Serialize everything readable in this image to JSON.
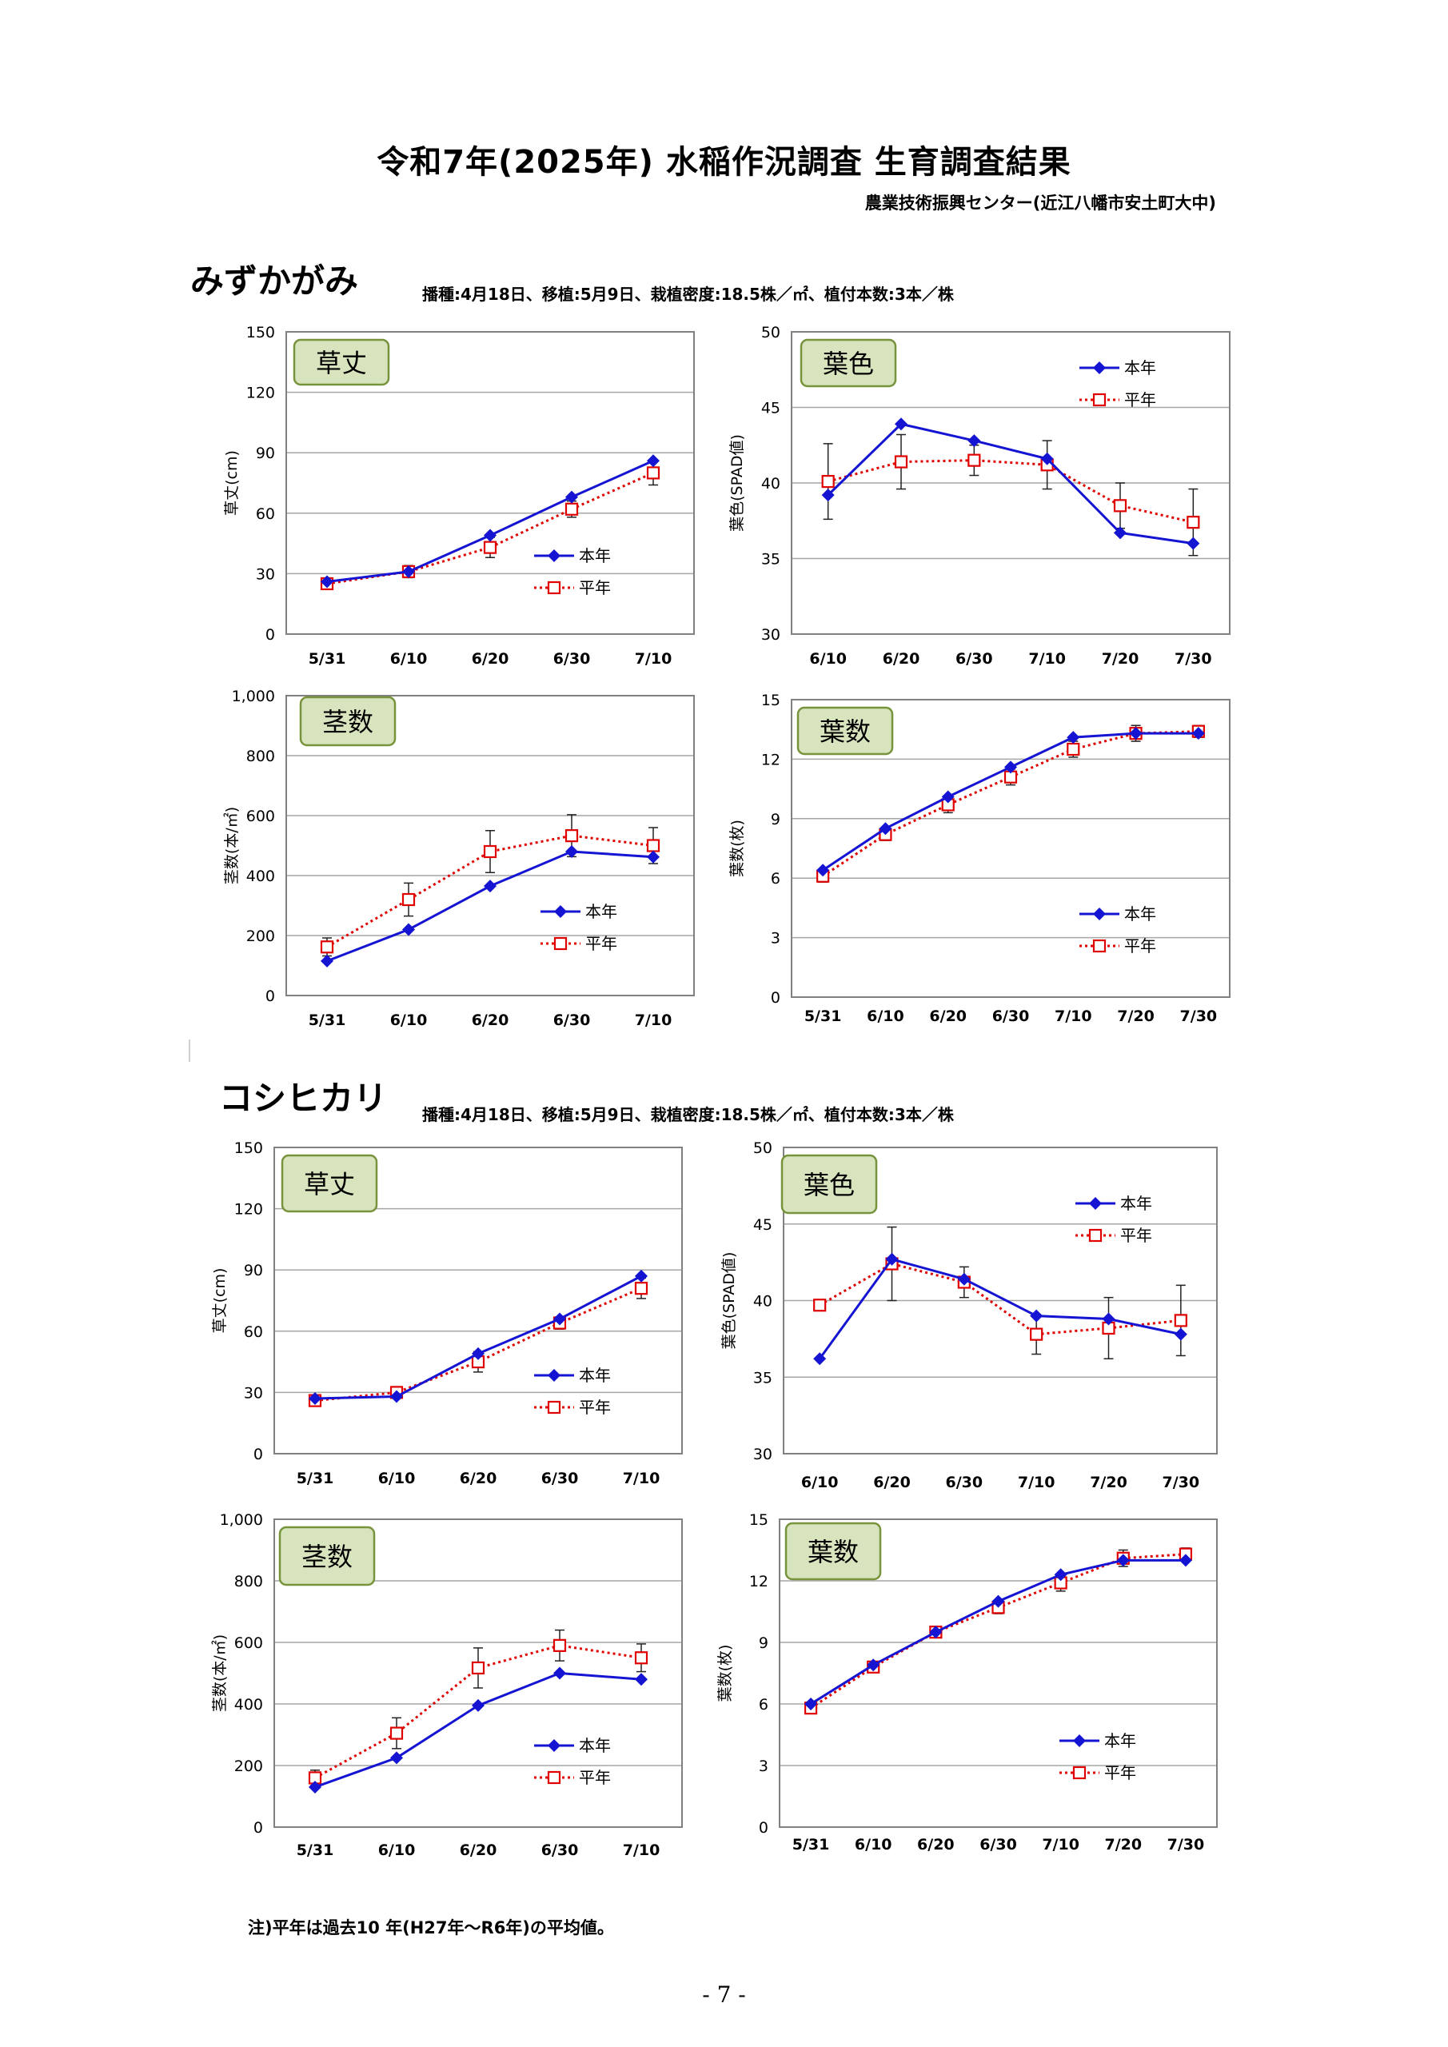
{
  "page": {
    "title": "令和7年(2025年) 水稲作況調査  生育調査結果",
    "subtitle": "農業技術振興センター(近江八幡市安土町大中)",
    "note": "注)平年は過去10 年(H27年～R6年)の平均値。",
    "page_number": "- 7 -"
  },
  "colors": {
    "current": "#1414d2",
    "average": "#e00000",
    "grid": "#a6a6a6",
    "badge_fill": "#d7e4bd",
    "badge_border": "#77933c"
  },
  "sections": [
    {
      "variety": "みずかがみ",
      "conditions": "播種:4月18日、移植:5月9日、栽植密度:18.5株／㎡、植付本数:3本／株"
    },
    {
      "variety": "コシヒカリ",
      "conditions": "播種:4月18日、移植:5月9日、栽植密度:18.5株／㎡、植付本数:3本／株"
    }
  ],
  "chart_data": [
    {
      "type": "line",
      "section": "みずかがみ",
      "title": "草丈",
      "ylabel": "草丈(cm)",
      "categories": [
        "5/31",
        "6/10",
        "6/20",
        "6/30",
        "7/10"
      ],
      "yticks": [
        "0",
        "30",
        "60",
        "90",
        "120",
        "150"
      ],
      "ylim": [
        0,
        150
      ],
      "grid": true,
      "legend": "lower-right",
      "series": [
        {
          "name": "本年",
          "values": [
            26,
            31,
            49,
            68,
            86
          ]
        },
        {
          "name": "平年",
          "values": [
            25,
            31,
            43,
            62,
            80
          ],
          "errors": [
            2,
            3,
            5,
            4,
            6
          ]
        }
      ]
    },
    {
      "type": "line",
      "section": "みずかがみ",
      "title": "葉色",
      "ylabel": "葉色(SPAD値)",
      "categories": [
        "6/10",
        "6/20",
        "6/30",
        "7/10",
        "7/20",
        "7/30"
      ],
      "yticks": [
        "30",
        "35",
        "40",
        "45",
        "50"
      ],
      "ylim": [
        30,
        50
      ],
      "grid": true,
      "legend": "upper-right",
      "series": [
        {
          "name": "本年",
          "values": [
            39.2,
            43.9,
            42.8,
            41.6,
            36.7,
            36.0
          ]
        },
        {
          "name": "平年",
          "values": [
            40.1,
            41.4,
            41.5,
            41.2,
            38.5,
            37.4
          ],
          "errors": [
            2.5,
            1.8,
            1.0,
            1.6,
            1.5,
            2.2
          ]
        }
      ]
    },
    {
      "type": "line",
      "section": "みずかがみ",
      "title": "茎数",
      "ylabel": "茎数(本/㎡)",
      "categories": [
        "5/31",
        "6/10",
        "6/20",
        "6/30",
        "7/10"
      ],
      "yticks": [
        "0",
        "200",
        "400",
        "600",
        "800",
        "1,000"
      ],
      "ylim": [
        0,
        1000
      ],
      "grid": true,
      "legend": "lower-right",
      "series": [
        {
          "name": "本年",
          "values": [
            115,
            220,
            365,
            480,
            462
          ]
        },
        {
          "name": "平年",
          "values": [
            162,
            320,
            480,
            533,
            500
          ],
          "errors": [
            30,
            55,
            70,
            70,
            60
          ]
        }
      ]
    },
    {
      "type": "line",
      "section": "みずかがみ",
      "title": "葉数",
      "ylabel": "葉数(枚)",
      "categories": [
        "5/31",
        "6/10",
        "6/20",
        "6/30",
        "7/10",
        "7/20",
        "7/30"
      ],
      "yticks": [
        "0",
        "3",
        "6",
        "9",
        "12",
        "15"
      ],
      "ylim": [
        0,
        15
      ],
      "grid": true,
      "legend": "lower-right",
      "series": [
        {
          "name": "本年",
          "values": [
            6.4,
            8.5,
            10.1,
            11.6,
            13.1,
            13.3,
            13.3
          ]
        },
        {
          "name": "平年",
          "values": [
            6.1,
            8.2,
            9.7,
            11.1,
            12.5,
            13.3,
            13.4
          ],
          "errors": [
            0.3,
            0.3,
            0.4,
            0.4,
            0.4,
            0.4,
            0.3
          ]
        }
      ]
    },
    {
      "type": "line",
      "section": "コシヒカリ",
      "title": "草丈",
      "ylabel": "草丈(cm)",
      "categories": [
        "5/31",
        "6/10",
        "6/20",
        "6/30",
        "7/10"
      ],
      "yticks": [
        "0",
        "30",
        "60",
        "90",
        "120",
        "150"
      ],
      "ylim": [
        0,
        150
      ],
      "grid": true,
      "legend": "lower-right",
      "series": [
        {
          "name": "本年",
          "values": [
            27,
            28,
            49,
            66,
            87
          ]
        },
        {
          "name": "平年",
          "values": [
            26,
            30,
            45,
            64,
            81
          ],
          "errors": [
            2,
            2,
            5,
            3,
            5
          ]
        }
      ]
    },
    {
      "type": "line",
      "section": "コシヒカリ",
      "title": "葉色",
      "ylabel": "葉色(SPAD値)",
      "categories": [
        "6/10",
        "6/20",
        "6/30",
        "7/10",
        "7/20",
        "7/30"
      ],
      "yticks": [
        "30",
        "35",
        "40",
        "45",
        "50"
      ],
      "ylim": [
        30,
        50
      ],
      "grid": true,
      "legend": "upper-right",
      "series": [
        {
          "name": "本年",
          "values": [
            36.2,
            42.7,
            41.4,
            39.0,
            38.8,
            37.8
          ]
        },
        {
          "name": "平年",
          "values": [
            39.7,
            42.4,
            41.2,
            37.8,
            38.2,
            38.7
          ],
          "errors": [
            0,
            2.4,
            1.0,
            1.3,
            2.0,
            2.3
          ]
        }
      ]
    },
    {
      "type": "line",
      "section": "コシヒカリ",
      "title": "茎数",
      "ylabel": "茎数(本/㎡)",
      "categories": [
        "5/31",
        "6/10",
        "6/20",
        "6/30",
        "7/10"
      ],
      "yticks": [
        "0",
        "200",
        "400",
        "600",
        "800",
        "1,000"
      ],
      "ylim": [
        0,
        1000
      ],
      "grid": true,
      "legend": "lower-right",
      "series": [
        {
          "name": "本年",
          "values": [
            130,
            225,
            395,
            500,
            480
          ]
        },
        {
          "name": "平年",
          "values": [
            160,
            305,
            517,
            590,
            550
          ],
          "errors": [
            25,
            50,
            65,
            50,
            45
          ]
        }
      ]
    },
    {
      "type": "line",
      "section": "コシヒカリ",
      "title": "葉数",
      "ylabel": "葉数(枚)",
      "categories": [
        "5/31",
        "6/10",
        "6/20",
        "6/30",
        "7/10",
        "7/20",
        "7/30"
      ],
      "yticks": [
        "0",
        "3",
        "6",
        "9",
        "12",
        "15"
      ],
      "ylim": [
        0,
        15
      ],
      "grid": true,
      "legend": "lower-right",
      "series": [
        {
          "name": "本年",
          "values": [
            6.0,
            7.9,
            9.5,
            11.0,
            12.3,
            13.0,
            13.0
          ]
        },
        {
          "name": "平年",
          "values": [
            5.8,
            7.8,
            9.5,
            10.7,
            11.9,
            13.1,
            13.3
          ],
          "errors": [
            0.2,
            0.2,
            0.2,
            0.3,
            0.4,
            0.4,
            0.3
          ]
        }
      ]
    }
  ]
}
